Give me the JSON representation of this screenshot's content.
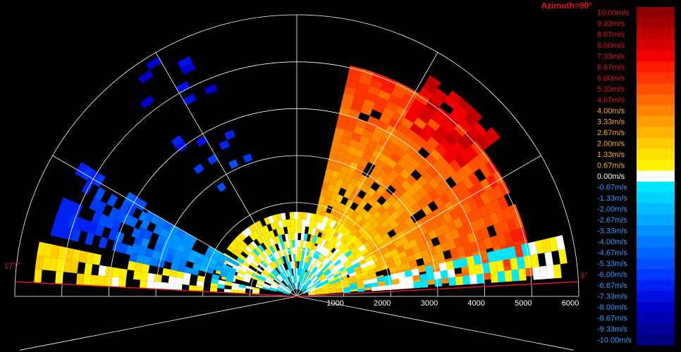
{
  "chart_data": {
    "type": "heatmap",
    "title": "Azimuth=90°",
    "title_color": "#e0141e",
    "scan_line_color": "#e0141e",
    "left_angle_label": "177°",
    "right_angle_label": "3°",
    "scan_angles_deg": [
      3,
      177
    ],
    "range_ticks": [
      {
        "value": 1000,
        "label": "1000"
      },
      {
        "value": 2000,
        "label": "2000"
      },
      {
        "value": 3000,
        "label": "3000"
      },
      {
        "value": 4000,
        "label": "4000"
      },
      {
        "value": 5000,
        "label": "5000"
      },
      {
        "value": 6000,
        "label": "6000"
      }
    ],
    "range_max": 6000,
    "spoke_angles_deg": [
      0,
      30,
      60,
      90,
      120,
      150,
      180
    ],
    "grid": true,
    "legend": {
      "placement": "right",
      "unit": "m/s",
      "entries": [
        {
          "label": "10.00m/s",
          "value": 10.0,
          "color": "#8b0000"
        },
        {
          "label": "9.33m/s",
          "value": 9.33,
          "color": "#a50000"
        },
        {
          "label": "8.67m/s",
          "value": 8.67,
          "color": "#bf0000"
        },
        {
          "label": "8.00m/s",
          "value": 8.0,
          "color": "#d80000"
        },
        {
          "label": "7.33m/s",
          "value": 7.33,
          "color": "#f20000"
        },
        {
          "label": "6.67m/s",
          "value": 6.67,
          "color": "#ff1a00"
        },
        {
          "label": "6.00m/s",
          "value": 6.0,
          "color": "#ff3500"
        },
        {
          "label": "5.33m/s",
          "value": 5.33,
          "color": "#ff5000"
        },
        {
          "label": "4.67m/s",
          "value": 4.67,
          "color": "#ff6a00"
        },
        {
          "label": "4.00m/s",
          "value": 4.0,
          "color": "#ff8300"
        },
        {
          "label": "3.33m/s",
          "value": 3.33,
          "color": "#ff9c00"
        },
        {
          "label": "2.67m/s",
          "value": 2.67,
          "color": "#ffb400"
        },
        {
          "label": "2.00m/s",
          "value": 2.0,
          "color": "#ffcb00"
        },
        {
          "label": "1.33m/s",
          "value": 1.33,
          "color": "#ffe100"
        },
        {
          "label": "0.67m/s",
          "value": 0.67,
          "color": "#fff200"
        },
        {
          "label": "0.00m/s",
          "value": 0.0,
          "color": "#ffffff"
        },
        {
          "label": "-0.67m/s",
          "value": -0.67,
          "color": "#00e8ff"
        },
        {
          "label": "-1.33m/s",
          "value": -1.33,
          "color": "#00d2ff"
        },
        {
          "label": "-2.00m/s",
          "value": -2.0,
          "color": "#00bcff"
        },
        {
          "label": "-2.67m/s",
          "value": -2.67,
          "color": "#00a6ff"
        },
        {
          "label": "-3.33m/s",
          "value": -3.33,
          "color": "#0090ff"
        },
        {
          "label": "-4.00m/s",
          "value": -4.0,
          "color": "#007aff"
        },
        {
          "label": "-4.67m/s",
          "value": -4.67,
          "color": "#0064ff"
        },
        {
          "label": "-5.33m/s",
          "value": -5.33,
          "color": "#004eff"
        },
        {
          "label": "-6.00m/s",
          "value": -6.0,
          "color": "#0038ff"
        },
        {
          "label": "-6.67m/s",
          "value": -6.67,
          "color": "#0022f5"
        },
        {
          "label": "-7.33m/s",
          "value": -7.33,
          "color": "#0010e0"
        },
        {
          "label": "-8.00m/s",
          "value": -8.0,
          "color": "#0000c8"
        },
        {
          "label": "-8.67m/s",
          "value": -8.67,
          "color": "#0000b0"
        },
        {
          "label": "-9.33m/s",
          "value": -9.33,
          "color": "#000098"
        },
        {
          "label": "-10.00m/s",
          "value": -10.0,
          "color": "#000080"
        }
      ]
    },
    "velocity_field": {
      "angle_step_deg": 3,
      "gate_step_m": 150,
      "regions": [
        {
          "name": "approaching-east",
          "a0": 5,
          "a1": 75,
          "r0": 250,
          "r1": 5000,
          "v_near": 0.8,
          "v_far": 6.0,
          "density": 0.93
        },
        {
          "name": "approaching-far-east",
          "a0": 38,
          "a1": 58,
          "r0": 4300,
          "r1": 5500,
          "v_near": 7.6,
          "v_far": 8.2,
          "density": 0.8
        },
        {
          "name": "near-mixed",
          "a0": 20,
          "a1": 165,
          "r0": 150,
          "r1": 1700,
          "v_near": -0.7,
          "v_far": 0.7,
          "density": 0.85
        },
        {
          "name": "receding-west-near",
          "a0": 150,
          "a1": 168,
          "r0": 1400,
          "r1": 3600,
          "v_near": -2.2,
          "v_far": -4.6,
          "density": 0.88
        },
        {
          "name": "receding-west-far",
          "a0": 148,
          "a1": 165,
          "r0": 3600,
          "r1": 5400,
          "v_near": -4.7,
          "v_far": -7.3,
          "density": 0.6
        },
        {
          "name": "low-horizon-west",
          "a0": 168,
          "a1": 176,
          "r0": 800,
          "r1": 5600,
          "v_near": 0.0,
          "v_far": 1.4,
          "density": 0.7
        },
        {
          "name": "low-horizon-east",
          "a0": 4,
          "a1": 12,
          "r0": 1000,
          "r1": 5700,
          "v_near": -0.8,
          "v_far": 0.5,
          "density": 0.75
        },
        {
          "name": "sparse-north-west",
          "a0": 108,
          "a1": 128,
          "r0": 2600,
          "r1": 5800,
          "v_near": -6.0,
          "v_far": -8.0,
          "density": 0.12
        }
      ]
    }
  }
}
